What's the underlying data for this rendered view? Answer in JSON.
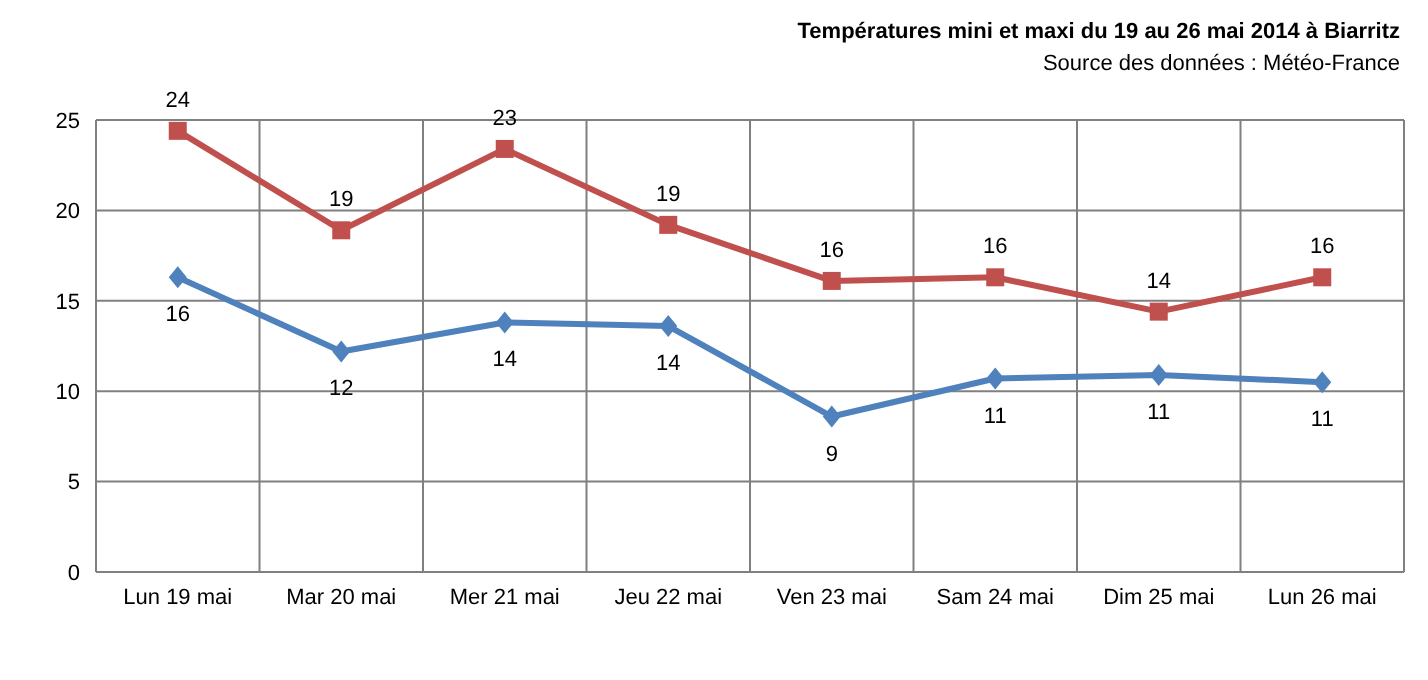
{
  "chart_data": {
    "type": "line",
    "title": "Températures mini et maxi du 19 au 26 mai 2014 à Biarritz",
    "subtitle": "Source des données : Météo-France",
    "categories": [
      "Lun 19 mai",
      "Mar 20 mai",
      "Mer 21 mai",
      "Jeu 22 mai",
      "Ven 23 mai",
      "Sam 24 mai",
      "Dim 25 mai",
      "Lun 26 mai"
    ],
    "series": [
      {
        "color": "#c0504d",
        "marker": "square",
        "values": [
          24.4,
          18.9,
          23.4,
          19.2,
          16.1,
          16.3,
          14.4,
          16.3
        ],
        "value_labels": [
          "24",
          "19",
          "23",
          "19",
          "16",
          "16",
          "14",
          "16"
        ]
      },
      {
        "color": "#4f81bd",
        "marker": "diamond",
        "values": [
          16.3,
          12.2,
          13.8,
          13.6,
          8.6,
          10.7,
          10.9,
          10.5
        ],
        "value_labels": [
          "16",
          "12",
          "14",
          "14",
          "9",
          "11",
          "11",
          "11"
        ]
      }
    ],
    "ylim": [
      0,
      25
    ],
    "yticks": [
      0,
      5,
      10,
      15,
      20,
      25
    ],
    "grid": true,
    "line_style": "solid"
  }
}
